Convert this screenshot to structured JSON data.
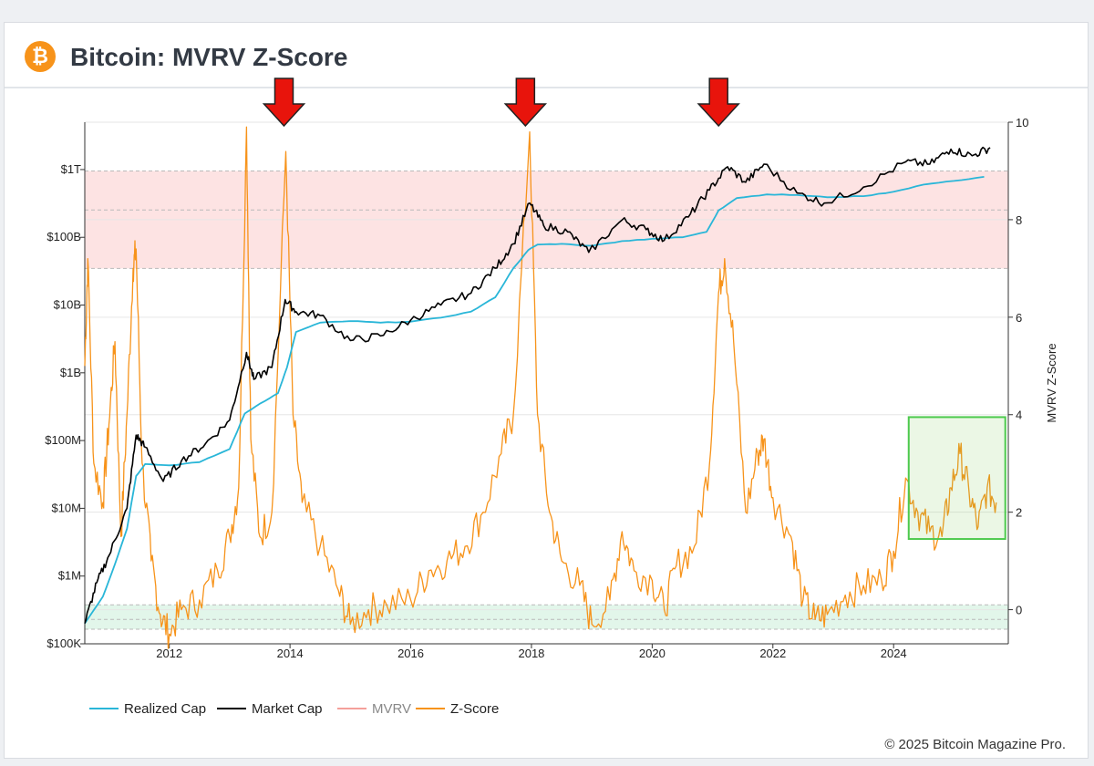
{
  "header": {
    "logo_glyph": "₿",
    "title": "Bitcoin: MVRV Z-Score"
  },
  "footer": {
    "copyright": "© 2025 Bitcoin Magazine Pro."
  },
  "colors": {
    "brand": "#f7931a",
    "realized_cap": "#29b6d8",
    "market_cap": "#000000",
    "mvrv": "#f4a09a",
    "z_score": "#f7931a",
    "red_band": "#fde3e3",
    "green_band": "#e2f6ea",
    "highlight_box": "#4cc94c",
    "arrow": "#e8140c"
  },
  "chart_data": {
    "type": "line",
    "title": "Bitcoin: MVRV Z-Score",
    "x_range": [
      2010.6,
      2025.9
    ],
    "x_ticks": [
      2012,
      2014,
      2016,
      2018,
      2020,
      2022,
      2024
    ],
    "left_axis": {
      "scale": "log",
      "range": [
        100000,
        5000000000000
      ],
      "ticks": [
        {
          "value": 100000,
          "label": "$100K"
        },
        {
          "value": 1000000,
          "label": "$1M"
        },
        {
          "value": 10000000,
          "label": "$10M"
        },
        {
          "value": 100000000,
          "label": "$100M"
        },
        {
          "value": 1000000000,
          "label": "$1B"
        },
        {
          "value": 10000000000,
          "label": "$10B"
        },
        {
          "value": 100000000000,
          "label": "$100B"
        },
        {
          "value": 1000000000000,
          "label": "$1T"
        }
      ]
    },
    "right_axis": {
      "label": "MVRV Z-Score",
      "range": [
        -0.7,
        10
      ],
      "ticks": [
        0,
        2,
        4,
        6,
        8,
        10
      ]
    },
    "bands": [
      {
        "name": "overvalued-zone",
        "axis": "right",
        "from": 7,
        "to": 9,
        "inner_lines": [
          8.2
        ]
      },
      {
        "name": "undervalued-zone",
        "axis": "right",
        "from": -0.4,
        "to": 0.1,
        "inner_lines": [
          -0.2
        ]
      }
    ],
    "arrows": [
      2013.9,
      2017.9,
      2021.1
    ],
    "highlight_box": {
      "x": [
        2024.25,
        2025.85
      ],
      "y": [
        1.45,
        3.95
      ]
    },
    "legend": [
      "Realized Cap",
      "Market Cap",
      "MVRV",
      "Z-Score"
    ],
    "series": [
      {
        "name": "Realized Cap",
        "axis": "left",
        "points": [
          [
            2010.6,
            200000
          ],
          [
            2010.9,
            500000
          ],
          [
            2011.1,
            1500000
          ],
          [
            2011.3,
            5000000
          ],
          [
            2011.45,
            30000000
          ],
          [
            2011.6,
            45000000
          ],
          [
            2012.0,
            43000000
          ],
          [
            2012.5,
            48000000
          ],
          [
            2013.0,
            75000000
          ],
          [
            2013.25,
            250000000
          ],
          [
            2013.5,
            350000000
          ],
          [
            2013.8,
            500000000
          ],
          [
            2013.95,
            1200000000
          ],
          [
            2014.1,
            4000000000
          ],
          [
            2014.5,
            5500000000
          ],
          [
            2015.0,
            5800000000
          ],
          [
            2015.5,
            5500000000
          ],
          [
            2016.0,
            5700000000
          ],
          [
            2016.5,
            6500000000
          ],
          [
            2017.0,
            8000000000
          ],
          [
            2017.4,
            13000000000
          ],
          [
            2017.7,
            35000000000
          ],
          [
            2017.95,
            65000000000
          ],
          [
            2018.1,
            78000000000
          ],
          [
            2018.5,
            80000000000
          ],
          [
            2019.0,
            75000000000
          ],
          [
            2019.5,
            88000000000
          ],
          [
            2020.0,
            95000000000
          ],
          [
            2020.5,
            100000000000
          ],
          [
            2020.9,
            120000000000
          ],
          [
            2021.1,
            250000000000
          ],
          [
            2021.4,
            380000000000
          ],
          [
            2021.9,
            430000000000
          ],
          [
            2022.4,
            420000000000
          ],
          [
            2022.9,
            390000000000
          ],
          [
            2023.5,
            405000000000
          ],
          [
            2024.0,
            470000000000
          ],
          [
            2024.5,
            600000000000
          ],
          [
            2025.0,
            680000000000
          ],
          [
            2025.5,
            780000000000
          ]
        ]
      },
      {
        "name": "Market Cap",
        "axis": "left",
        "points": [
          [
            2010.6,
            200000
          ],
          [
            2010.8,
            800000
          ],
          [
            2011.0,
            2000000
          ],
          [
            2011.3,
            10000000
          ],
          [
            2011.45,
            120000000
          ],
          [
            2011.6,
            80000000
          ],
          [
            2011.9,
            25000000
          ],
          [
            2012.2,
            50000000
          ],
          [
            2012.6,
            90000000
          ],
          [
            2013.0,
            200000000
          ],
          [
            2013.28,
            2000000000
          ],
          [
            2013.4,
            800000000
          ],
          [
            2013.7,
            1200000000
          ],
          [
            2013.92,
            12000000000
          ],
          [
            2014.1,
            8000000000
          ],
          [
            2014.5,
            7000000000
          ],
          [
            2015.0,
            3000000000
          ],
          [
            2015.5,
            3500000000
          ],
          [
            2016.0,
            6000000000
          ],
          [
            2016.5,
            10000000000
          ],
          [
            2017.0,
            15000000000
          ],
          [
            2017.4,
            35000000000
          ],
          [
            2017.7,
            80000000000
          ],
          [
            2017.97,
            320000000000
          ],
          [
            2018.2,
            150000000000
          ],
          [
            2018.6,
            120000000000
          ],
          [
            2018.95,
            60000000000
          ],
          [
            2019.5,
            180000000000
          ],
          [
            2019.9,
            130000000000
          ],
          [
            2020.2,
            90000000000
          ],
          [
            2020.6,
            200000000000
          ],
          [
            2020.95,
            500000000000
          ],
          [
            2021.25,
            1100000000000
          ],
          [
            2021.55,
            650000000000
          ],
          [
            2021.85,
            1200000000000
          ],
          [
            2022.4,
            450000000000
          ],
          [
            2022.85,
            320000000000
          ],
          [
            2023.5,
            550000000000
          ],
          [
            2024.2,
            1300000000000
          ],
          [
            2024.6,
            1200000000000
          ],
          [
            2024.95,
            2000000000000
          ],
          [
            2025.3,
            1600000000000
          ],
          [
            2025.6,
            2100000000000
          ]
        ]
      },
      {
        "name": "Z-Score",
        "axis": "right",
        "points": [
          [
            2010.6,
            5.0
          ],
          [
            2010.65,
            7.2
          ],
          [
            2010.75,
            3.0
          ],
          [
            2010.9,
            2.2
          ],
          [
            2011.0,
            3.8
          ],
          [
            2011.1,
            5.5
          ],
          [
            2011.2,
            1.5
          ],
          [
            2011.3,
            4.0
          ],
          [
            2011.4,
            7.0
          ],
          [
            2011.45,
            7.4
          ],
          [
            2011.55,
            3.0
          ],
          [
            2011.7,
            1.0
          ],
          [
            2011.85,
            -0.1
          ],
          [
            2012.0,
            -0.5
          ],
          [
            2012.2,
            0.0
          ],
          [
            2012.5,
            0.2
          ],
          [
            2012.8,
            0.8
          ],
          [
            2013.0,
            1.5
          ],
          [
            2013.15,
            2.5
          ],
          [
            2013.28,
            9.9
          ],
          [
            2013.35,
            3.5
          ],
          [
            2013.5,
            1.5
          ],
          [
            2013.7,
            2.0
          ],
          [
            2013.93,
            9.4
          ],
          [
            2014.05,
            4.0
          ],
          [
            2014.2,
            2.2
          ],
          [
            2014.5,
            1.3
          ],
          [
            2014.8,
            0.4
          ],
          [
            2015.0,
            -0.3
          ],
          [
            2015.3,
            0.0
          ],
          [
            2015.6,
            0.1
          ],
          [
            2016.0,
            0.2
          ],
          [
            2016.3,
            0.8
          ],
          [
            2016.6,
            1.0
          ],
          [
            2016.9,
            1.3
          ],
          [
            2017.2,
            2.0
          ],
          [
            2017.5,
            3.2
          ],
          [
            2017.7,
            4.0
          ],
          [
            2017.97,
            9.8
          ],
          [
            2018.1,
            4.0
          ],
          [
            2018.3,
            2.0
          ],
          [
            2018.5,
            1.0
          ],
          [
            2018.8,
            0.5
          ],
          [
            2019.0,
            -0.3
          ],
          [
            2019.3,
            0.2
          ],
          [
            2019.5,
            1.6
          ],
          [
            2019.7,
            0.8
          ],
          [
            2020.0,
            0.6
          ],
          [
            2020.2,
            0.0
          ],
          [
            2020.4,
            0.9
          ],
          [
            2020.7,
            1.3
          ],
          [
            2020.95,
            3.0
          ],
          [
            2021.1,
            6.5
          ],
          [
            2021.2,
            7.2
          ],
          [
            2021.35,
            5.5
          ],
          [
            2021.55,
            2.0
          ],
          [
            2021.75,
            3.2
          ],
          [
            2021.85,
            3.5
          ],
          [
            2022.0,
            2.3
          ],
          [
            2022.3,
            1.5
          ],
          [
            2022.5,
            0.2
          ],
          [
            2022.7,
            -0.2
          ],
          [
            2022.9,
            -0.1
          ],
          [
            2023.2,
            0.3
          ],
          [
            2023.5,
            0.5
          ],
          [
            2023.8,
            0.6
          ],
          [
            2024.0,
            1.2
          ],
          [
            2024.2,
            2.7
          ],
          [
            2024.4,
            2.0
          ],
          [
            2024.6,
            1.6
          ],
          [
            2024.8,
            1.5
          ],
          [
            2024.95,
            2.5
          ],
          [
            2025.1,
            3.2
          ],
          [
            2025.25,
            2.4
          ],
          [
            2025.4,
            1.7
          ],
          [
            2025.55,
            2.5
          ],
          [
            2025.7,
            2.2
          ]
        ]
      }
    ]
  }
}
